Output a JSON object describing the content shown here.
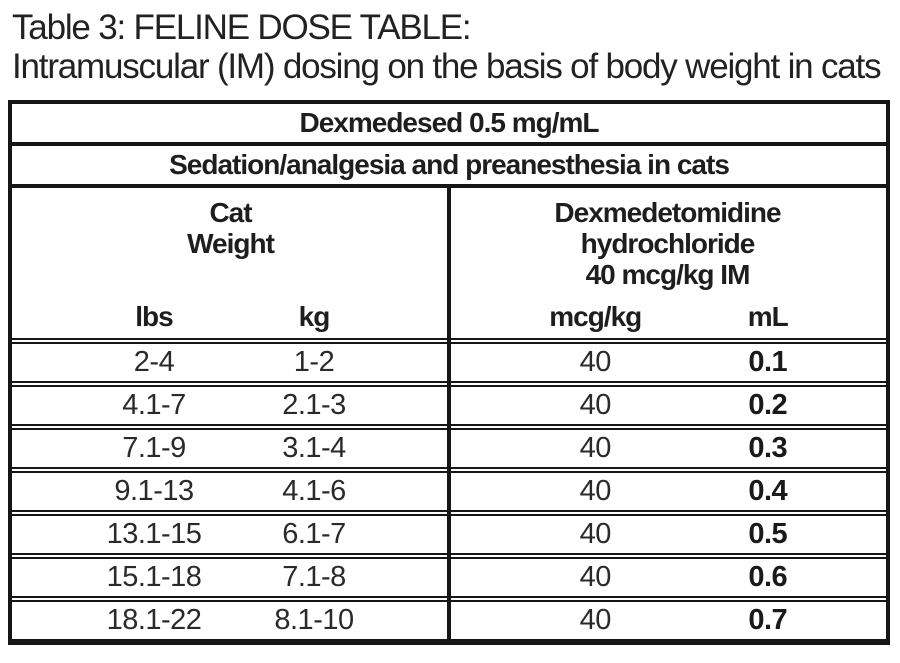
{
  "colors": {
    "text": "#1e1e1e",
    "border": "#161616",
    "background": "#ffffff"
  },
  "title": {
    "line1": "Table 3: FELINE DOSE TABLE:",
    "line2": "Intramuscular (IM) dosing on the basis of body weight in cats"
  },
  "table": {
    "product_banner": "Dexmedesed 0.5 mg/mL",
    "indication_banner": "Sedation/analgesia and preanesthesia in cats",
    "weight_group": {
      "title_lines": [
        "Cat",
        "Weight"
      ],
      "col_lbs": "lbs",
      "col_kg": "kg"
    },
    "dose_group": {
      "title_lines": [
        "Dexmedetomidine",
        "hydrochloride",
        "40 mcg/kg IM"
      ],
      "col_mcg_kg": "mcg/kg",
      "col_ml": "mL"
    },
    "rows": [
      {
        "lbs": "2-4",
        "kg": "1-2",
        "mcg_kg": "40",
        "ml": "0.1"
      },
      {
        "lbs": "4.1-7",
        "kg": "2.1-3",
        "mcg_kg": "40",
        "ml": "0.2"
      },
      {
        "lbs": "7.1-9",
        "kg": "3.1-4",
        "mcg_kg": "40",
        "ml": "0.3"
      },
      {
        "lbs": "9.1-13",
        "kg": "4.1-6",
        "mcg_kg": "40",
        "ml": "0.4"
      },
      {
        "lbs": "13.1-15",
        "kg": "6.1-7",
        "mcg_kg": "40",
        "ml": "0.5"
      },
      {
        "lbs": "15.1-18",
        "kg": "7.1-8",
        "mcg_kg": "40",
        "ml": "0.6"
      },
      {
        "lbs": "18.1-22",
        "kg": "8.1-10",
        "mcg_kg": "40",
        "ml": "0.7"
      }
    ]
  }
}
